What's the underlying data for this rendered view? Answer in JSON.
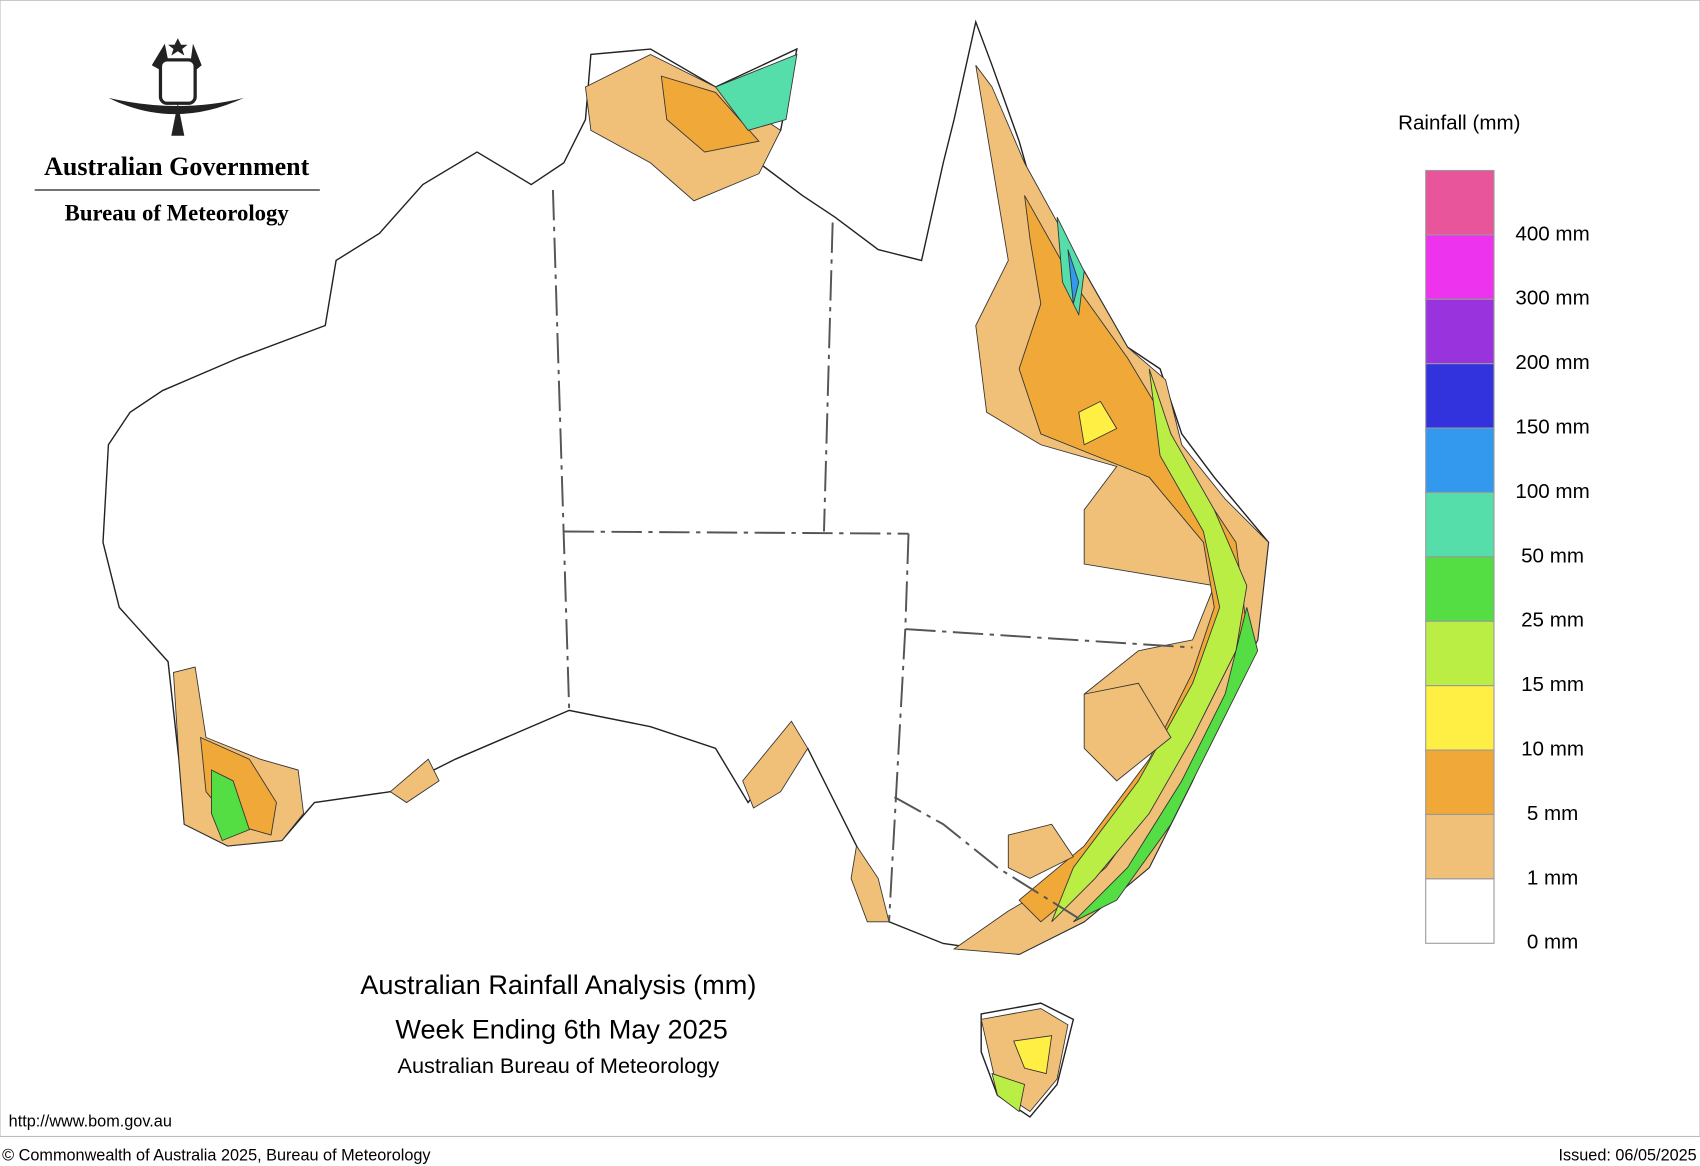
{
  "header": {
    "government": "Australian Government",
    "bureau": "Bureau of Meteorology"
  },
  "legend": {
    "title": "Rainfall (mm)",
    "labels": [
      "400 mm",
      "300 mm",
      "200 mm",
      "150 mm",
      "100 mm",
      "50 mm",
      "25 mm",
      "15 mm",
      "10 mm",
      "5 mm",
      "1 mm",
      "0 mm"
    ],
    "colors": [
      "#e8559a",
      "#ee33ee",
      "#9933dd",
      "#3333dd",
      "#3399ee",
      "#55ddaa",
      "#55dd44",
      "#bbee44",
      "#ffee44",
      "#f0a838",
      "#f0c078",
      "#ffffff"
    ]
  },
  "caption": {
    "title": "Australian Rainfall Analysis (mm)",
    "subtitle": "Week Ending 6th May 2025",
    "source": "Australian Bureau of Meteorology"
  },
  "footer": {
    "url": "http://www.bom.gov.au",
    "copyright": "© Commonwealth of Australia 2025, Bureau of Meteorology",
    "issued": "Issued: 06/05/2025"
  }
}
